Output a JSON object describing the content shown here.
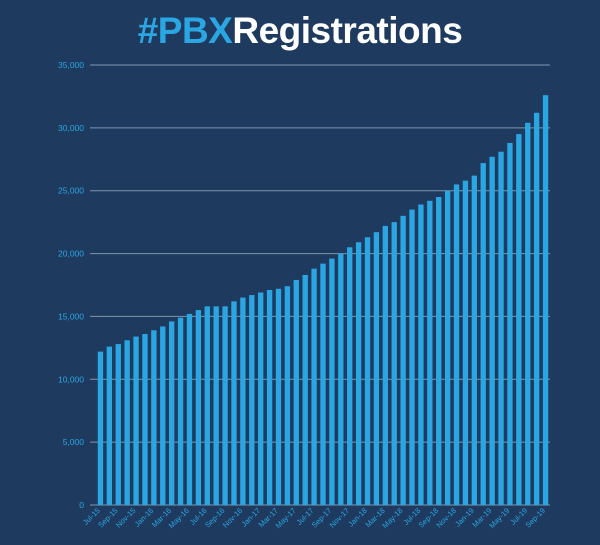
{
  "title": {
    "hashtag": "#PBX",
    "main": "Registrations"
  },
  "colors": {
    "background": "#1f3a5f",
    "bar": "#2aa7e2",
    "title_accent": "#2aa7e2",
    "title_main": "#ffffff",
    "gridline": "#7f95ad",
    "tick_text": "#2aa7e2"
  },
  "chart_data": {
    "type": "bar",
    "title": "#PBXRegistrations",
    "xlabel": "",
    "ylabel": "",
    "ylim": [
      0,
      35000
    ],
    "yticks": [
      0,
      5000,
      10000,
      15000,
      20000,
      25000,
      30000,
      35000
    ],
    "ytick_labels": [
      "0",
      "5,000",
      "10,000",
      "15,000",
      "20,000",
      "25,000",
      "30,000",
      "35,000"
    ],
    "grid": true,
    "categories": [
      "Jul-15",
      "Aug-15",
      "Sep-15",
      "Oct-15",
      "Nov-15",
      "Dec-15",
      "Jan-16",
      "Feb-16",
      "Mar-16",
      "Apr-16",
      "May-16",
      "Jun-16",
      "Jul-16",
      "Aug-16",
      "Sep-16",
      "Oct-16",
      "Nov-16",
      "Dec-16",
      "Jan-17",
      "Feb-17",
      "Mar-17",
      "Apr-17",
      "May-17",
      "Jun-17",
      "Jul-17",
      "Aug-17",
      "Sep-17",
      "Oct-17",
      "Nov-17",
      "Dec-17",
      "Jan-18",
      "Feb-18",
      "Mar-18",
      "Apr-18",
      "May-18",
      "Jun-18",
      "Jul-18",
      "Aug-18",
      "Sep-18",
      "Oct-18",
      "Nov-18",
      "Dec-18",
      "Jan-19",
      "Feb-19",
      "Mar-19",
      "Apr-19",
      "May-19",
      "Jun-19",
      "Jul-19",
      "Aug-19",
      "Sep-19"
    ],
    "visible_x_labels": [
      "Jul-15",
      "Sep-15",
      "Nov-15",
      "Jan-16",
      "Mar-16",
      "May-16",
      "Jul-16",
      "Sep-16",
      "Nov-16",
      "Jan-17",
      "Mar-17",
      "May-17",
      "Jul-17",
      "Sep-17",
      "Nov-17",
      "Jan-18",
      "Mar-18",
      "May-18",
      "Jul-18",
      "Sep-18",
      "Nov-18",
      "Jan-19",
      "Mar-19",
      "May-19",
      "Jul-19",
      "Sep-19"
    ],
    "values": [
      12200,
      12600,
      12800,
      13100,
      13400,
      13600,
      13900,
      14200,
      14600,
      14900,
      15200,
      15500,
      15800,
      15800,
      15800,
      16200,
      16500,
      16700,
      16900,
      17100,
      17200,
      17400,
      17900,
      18300,
      18800,
      19200,
      19600,
      20000,
      20500,
      20900,
      21300,
      21700,
      22200,
      22500,
      23000,
      23500,
      23900,
      24200,
      24500,
      25000,
      25500,
      25800,
      26200,
      27200,
      27700,
      28100,
      28800,
      29500,
      30400,
      31200,
      32600
    ]
  }
}
